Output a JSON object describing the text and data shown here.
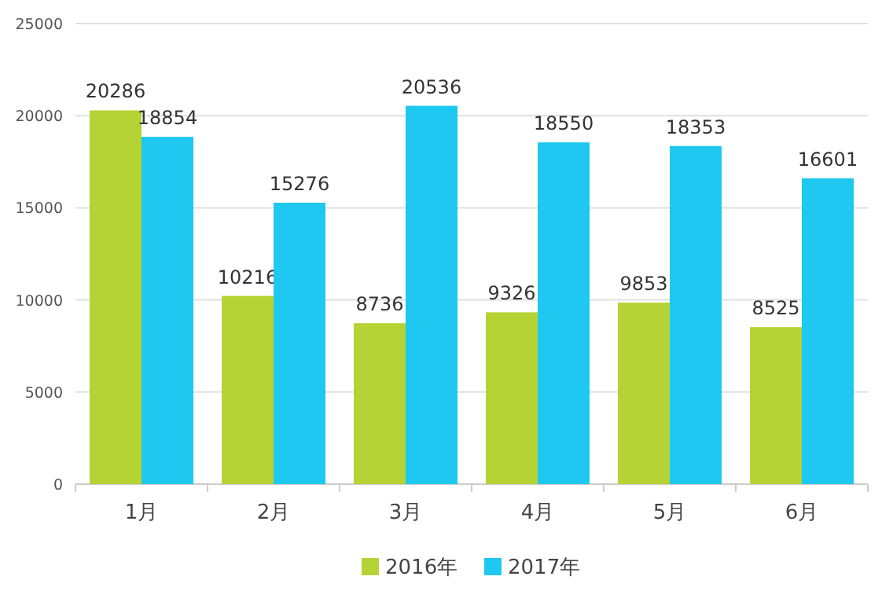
{
  "chart_data": {
    "type": "bar",
    "categories": [
      "1月",
      "2月",
      "3月",
      "4月",
      "5月",
      "6月"
    ],
    "series": [
      {
        "name": "2016年",
        "color": "#b5d334",
        "values": [
          20286,
          10216,
          8736,
          9326,
          9853,
          8525
        ]
      },
      {
        "name": "2017年",
        "color": "#1ec8f0",
        "values": [
          18854,
          15276,
          20536,
          18550,
          18353,
          16601
        ]
      }
    ],
    "ylim": [
      0,
      25000
    ],
    "yticks": [
      0,
      5000,
      10000,
      15000,
      20000,
      25000
    ],
    "grid": "y",
    "legend": "bottom",
    "data_labels": true
  }
}
